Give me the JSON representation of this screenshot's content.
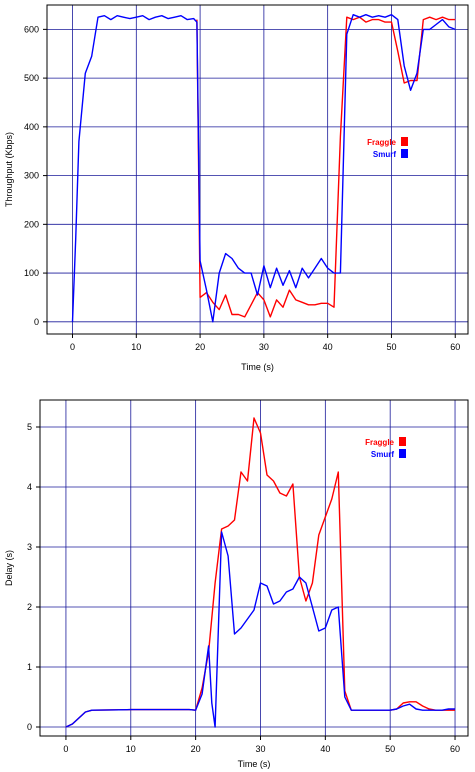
{
  "chart_data": [
    {
      "type": "line",
      "xlabel": "Time (s)",
      "ylabel": "Throughput (Kbps)",
      "xlim": [
        -4,
        62
      ],
      "ylim": [
        -25,
        650
      ],
      "xticks": [
        0,
        10,
        20,
        30,
        40,
        50,
        60
      ],
      "yticks": [
        0,
        100,
        200,
        300,
        400,
        500,
        600
      ],
      "grid": true,
      "legend_position": "right",
      "series": [
        {
          "name": "Fraggle",
          "color": "#ff0000",
          "x": [
            19.5,
            20,
            21,
            22,
            23,
            24,
            25,
            26,
            27,
            28,
            29,
            30,
            31,
            32,
            33,
            34,
            35,
            36,
            37,
            38,
            39,
            40,
            41,
            42,
            43,
            44,
            45,
            46,
            47,
            48,
            49,
            50,
            51,
            52,
            53,
            54,
            55,
            56,
            57,
            58,
            59,
            60
          ],
          "y": [
            620,
            50,
            60,
            40,
            25,
            55,
            15,
            15,
            10,
            35,
            60,
            45,
            10,
            45,
            30,
            65,
            45,
            40,
            35,
            35,
            38,
            38,
            30,
            380,
            625,
            620,
            625,
            615,
            620,
            620,
            615,
            615,
            555,
            490,
            495,
            495,
            620,
            625,
            620,
            625,
            620,
            620
          ]
        },
        {
          "name": "Smurf",
          "color": "#0000ff",
          "x": [
            0,
            0.5,
            1,
            2,
            3,
            4,
            5,
            6,
            7,
            8,
            9,
            10,
            11,
            12,
            13,
            14,
            15,
            16,
            17,
            18,
            19,
            19.5,
            20,
            21,
            22,
            23,
            24,
            25,
            26,
            27,
            28,
            29,
            30,
            31,
            32,
            33,
            34,
            35,
            36,
            37,
            38,
            39,
            40,
            41,
            42,
            43,
            44,
            45,
            46,
            47,
            48,
            49,
            50,
            51,
            52,
            53,
            54,
            55,
            56,
            57,
            58,
            59,
            60
          ],
          "y": [
            0,
            170,
            370,
            510,
            545,
            625,
            628,
            620,
            628,
            625,
            622,
            625,
            628,
            620,
            625,
            628,
            622,
            625,
            628,
            620,
            622,
            615,
            125,
            65,
            0,
            100,
            140,
            130,
            110,
            100,
            100,
            55,
            115,
            70,
            110,
            75,
            105,
            70,
            110,
            90,
            110,
            130,
            110,
            100,
            100,
            590,
            630,
            625,
            630,
            625,
            628,
            625,
            630,
            620,
            525,
            475,
            510,
            600,
            600,
            610,
            620,
            605,
            600
          ]
        }
      ]
    },
    {
      "type": "line",
      "xlabel": "Time (s)",
      "ylabel": "Delay (s)",
      "xlim": [
        -4,
        62
      ],
      "ylim": [
        -0.15,
        5.45
      ],
      "xticks": [
        0,
        10,
        20,
        30,
        40,
        50,
        60
      ],
      "yticks": [
        0,
        1,
        2,
        3,
        4,
        5
      ],
      "grid": true,
      "legend_position": "top-right",
      "series": [
        {
          "name": "Fraggle",
          "color": "#ff0000",
          "x": [
            0,
            1,
            2,
            3,
            4,
            10,
            19,
            20,
            21,
            22,
            23,
            24,
            25,
            26,
            27,
            28,
            29,
            30,
            31,
            32,
            33,
            34,
            35,
            36,
            37,
            38,
            39,
            40,
            41,
            42,
            43,
            44,
            50,
            51,
            52,
            53,
            54,
            55,
            56,
            57,
            58,
            59,
            60
          ],
          "y": [
            0,
            0.05,
            0.15,
            0.25,
            0.28,
            0.29,
            0.29,
            0.28,
            0.65,
            1.25,
            2.4,
            3.3,
            3.35,
            3.45,
            4.25,
            4.1,
            5.15,
            4.9,
            4.2,
            4.1,
            3.9,
            3.85,
            4.05,
            2.5,
            2.1,
            2.4,
            3.2,
            3.5,
            3.8,
            4.25,
            0.6,
            0.28,
            0.28,
            0.3,
            0.4,
            0.42,
            0.42,
            0.35,
            0.3,
            0.28,
            0.28,
            0.28,
            0.28
          ]
        },
        {
          "name": "Smurf",
          "color": "#0000ff",
          "x": [
            0,
            1,
            2,
            3,
            4,
            10,
            19,
            20,
            21,
            22,
            22.5,
            23,
            24,
            25,
            26,
            27,
            28,
            29,
            30,
            31,
            32,
            33,
            34,
            35,
            36,
            37,
            38,
            39,
            40,
            41,
            42,
            43,
            44,
            50,
            51,
            52,
            53,
            54,
            55,
            56,
            57,
            58,
            59,
            60
          ],
          "y": [
            0,
            0.05,
            0.15,
            0.25,
            0.28,
            0.29,
            0.29,
            0.28,
            0.55,
            1.35,
            0.4,
            0,
            3.25,
            2.85,
            1.55,
            1.65,
            1.8,
            1.95,
            2.4,
            2.35,
            2.05,
            2.1,
            2.25,
            2.3,
            2.5,
            2.4,
            2.0,
            1.6,
            1.65,
            1.95,
            2.0,
            0.5,
            0.28,
            0.28,
            0.3,
            0.35,
            0.38,
            0.3,
            0.28,
            0.28,
            0.28,
            0.28,
            0.3,
            0.3
          ]
        }
      ]
    }
  ]
}
